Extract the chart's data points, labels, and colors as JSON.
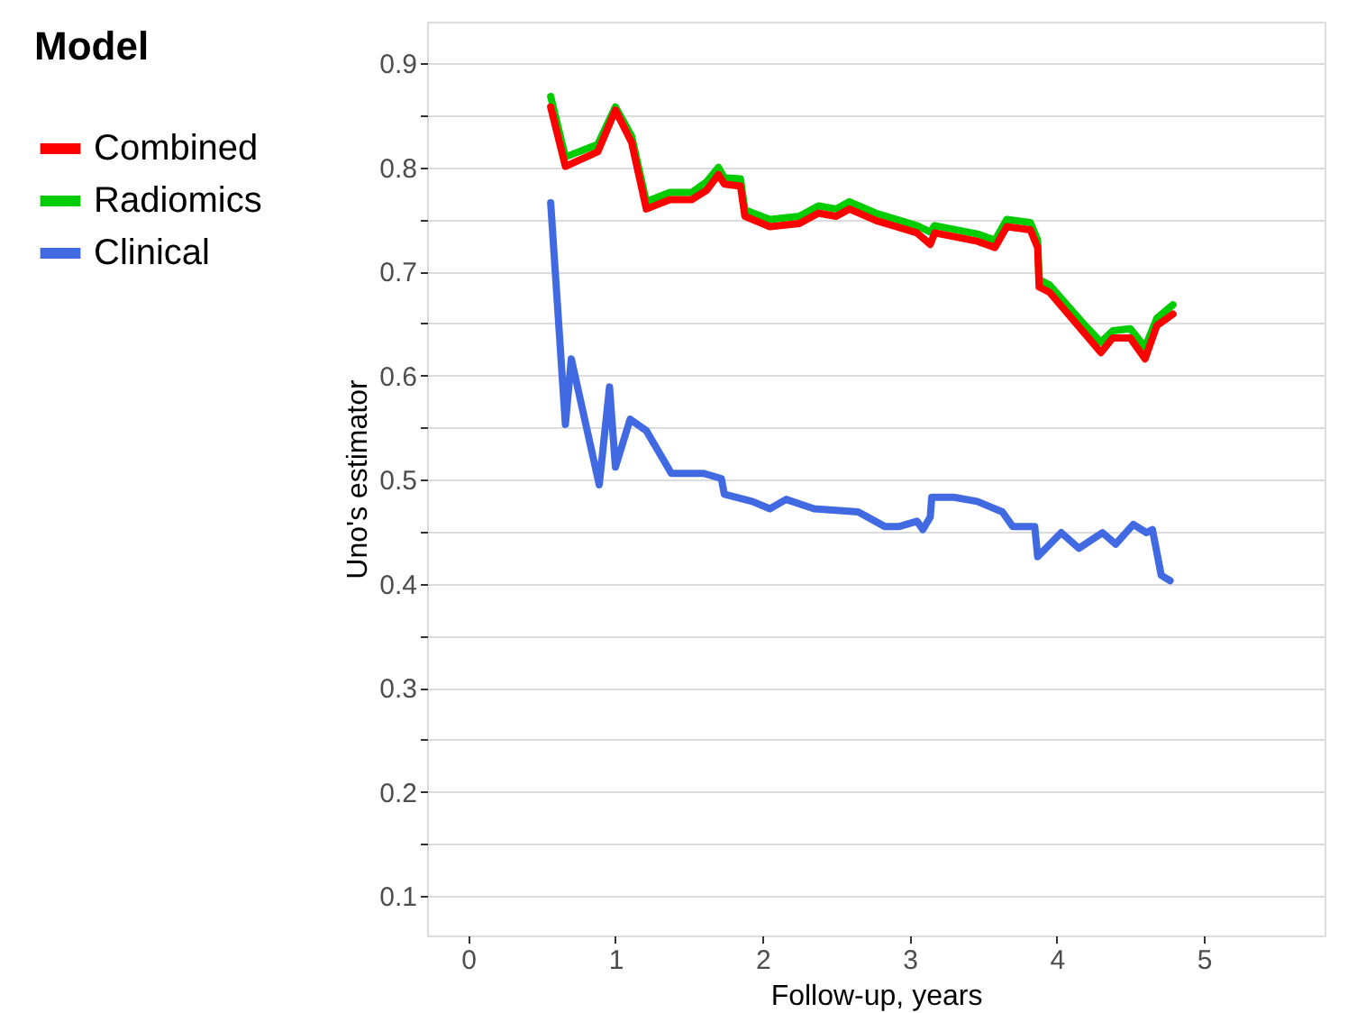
{
  "chart_data": {
    "type": "line",
    "xlabel": "Follow-up, years",
    "ylabel": "Uno's estimator",
    "legend_title": "Model",
    "legend": "left",
    "grid": "y",
    "line_style": "solid",
    "marker": "none",
    "xlim": [
      -0.28,
      5.82
    ],
    "xticks": [
      0,
      1,
      2,
      3,
      4,
      5
    ],
    "ylim": [
      0.062,
      0.94
    ],
    "yticks": [
      0.1,
      {
        "value": 0.15,
        "label": null
      },
      0.2,
      {
        "value": 0.25,
        "label": null
      },
      0.3,
      {
        "value": 0.35,
        "label": null
      },
      0.4,
      {
        "value": 0.45,
        "label": null
      },
      0.5,
      {
        "value": 0.55,
        "label": null
      },
      0.6,
      {
        "value": 0.65,
        "label": null
      },
      0.7,
      {
        "value": 0.75,
        "label": null
      },
      0.8,
      {
        "value": 0.85,
        "label": null
      },
      0.9
    ],
    "series": [
      {
        "name": "Combined",
        "color": "#ff0000",
        "x": [
          0.56,
          0.66,
          0.88,
          1.0,
          1.11,
          1.21,
          1.37,
          1.52,
          1.62,
          1.7,
          1.74,
          1.85,
          1.88,
          2.05,
          2.25,
          2.38,
          2.5,
          2.59,
          2.77,
          3.05,
          3.14,
          3.17,
          3.46,
          3.58,
          3.66,
          3.82,
          3.87,
          3.88,
          3.95,
          4.18,
          4.3,
          4.38,
          4.5,
          4.6,
          4.68,
          4.79
        ],
        "values": [
          0.858,
          0.801,
          0.815,
          0.855,
          0.824,
          0.76,
          0.769,
          0.769,
          0.778,
          0.793,
          0.784,
          0.782,
          0.753,
          0.743,
          0.746,
          0.756,
          0.753,
          0.76,
          0.749,
          0.737,
          0.726,
          0.737,
          0.729,
          0.723,
          0.743,
          0.74,
          0.723,
          0.685,
          0.68,
          0.642,
          0.622,
          0.636,
          0.636,
          0.616,
          0.648,
          0.659
        ]
      },
      {
        "name": "Radiomics",
        "color": "#00cc00",
        "x": [
          0.56,
          0.66,
          0.88,
          1.0,
          1.11,
          1.21,
          1.37,
          1.52,
          1.62,
          1.7,
          1.74,
          1.85,
          1.88,
          2.05,
          2.25,
          2.38,
          2.5,
          2.59,
          2.77,
          3.05,
          3.14,
          3.17,
          3.46,
          3.58,
          3.66,
          3.82,
          3.87,
          3.88,
          3.95,
          4.18,
          4.3,
          4.38,
          4.5,
          4.6,
          4.68,
          4.79
        ],
        "values": [
          0.868,
          0.81,
          0.822,
          0.858,
          0.83,
          0.767,
          0.776,
          0.776,
          0.786,
          0.8,
          0.79,
          0.789,
          0.759,
          0.75,
          0.753,
          0.763,
          0.76,
          0.767,
          0.756,
          0.744,
          0.738,
          0.744,
          0.736,
          0.73,
          0.75,
          0.747,
          0.73,
          0.692,
          0.687,
          0.65,
          0.632,
          0.643,
          0.645,
          0.627,
          0.655,
          0.668
        ]
      },
      {
        "name": "Clinical",
        "color": "#4169e1",
        "x": [
          0.56,
          0.66,
          0.7,
          0.89,
          0.96,
          1.0,
          1.1,
          1.21,
          1.38,
          1.6,
          1.72,
          1.74,
          1.93,
          2.05,
          2.16,
          2.35,
          2.65,
          2.83,
          2.93,
          3.05,
          3.09,
          3.14,
          3.15,
          3.3,
          3.46,
          3.63,
          3.7,
          3.85,
          3.87,
          4.03,
          4.15,
          4.31,
          4.4,
          4.52,
          4.61,
          4.65,
          4.71,
          4.77
        ],
        "values": [
          0.766,
          0.553,
          0.616,
          0.495,
          0.589,
          0.512,
          0.558,
          0.547,
          0.506,
          0.506,
          0.501,
          0.486,
          0.479,
          0.472,
          0.481,
          0.472,
          0.469,
          0.455,
          0.455,
          0.46,
          0.452,
          0.464,
          0.483,
          0.483,
          0.479,
          0.469,
          0.455,
          0.455,
          0.426,
          0.449,
          0.434,
          0.449,
          0.438,
          0.457,
          0.449,
          0.452,
          0.408,
          0.403
        ]
      }
    ]
  }
}
